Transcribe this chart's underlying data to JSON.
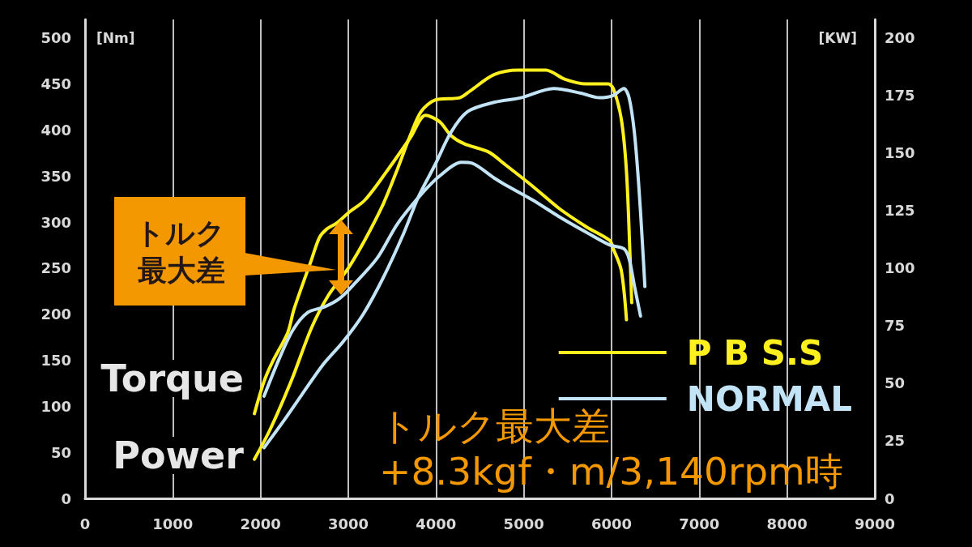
{
  "chart_data": {
    "type": "line",
    "ylabel": "[Nm]",
    "y2label": "[KW]",
    "annotations": [
      "Torque",
      "Power",
      "トルク最大差",
      "トルク最大差\n+8.3kgf・m/3,140rpm時"
    ],
    "series": [
      {
        "name": "P B S.S",
        "color": "#fff01e",
        "x": [
          1930,
          2040,
          2140,
          2310,
          2380,
          2580,
          2670,
          2750,
          2870,
          3000,
          3190,
          3430,
          3710,
          3880,
          4040,
          4170,
          4320,
          4600,
          4780,
          5100,
          5400,
          5710,
          5980,
          6020,
          6110,
          6170
        ],
        "values": [
          92,
          127,
          149,
          180,
          205,
          259,
          283,
          292,
          299,
          310,
          324,
          354,
          392,
          416,
          409,
          394,
          385,
          376,
          363,
          339,
          315,
          295,
          280,
          271,
          248,
          194
        ]
      },
      {
        "color": "#fff01e",
        "axis": "y2",
        "x": [
          1930,
          2110,
          2350,
          2580,
          2770,
          3000,
          3200,
          3400,
          3560,
          3710,
          3830,
          3990,
          4270,
          4390,
          4660,
          4940,
          5250,
          5470,
          5710,
          5960,
          6020,
          6110,
          6170,
          6210,
          6230
        ],
        "values": [
          17,
          30,
          51,
          74,
          88,
          100,
          113,
          128,
          143,
          158,
          168,
          173,
          174,
          177,
          184,
          186,
          186,
          182,
          180,
          180,
          178,
          165,
          142,
          106,
          85
        ]
      },
      {
        "name": "NORMAL",
        "color": "#c2e4f6",
        "x": [
          2040,
          2210,
          2370,
          2540,
          2730,
          2900,
          3070,
          3330,
          3560,
          3830,
          4040,
          4290,
          4410,
          4660,
          4780,
          5100,
          5400,
          5710,
          5980,
          6140,
          6200,
          6260,
          6330
        ],
        "values": [
          111,
          151,
          183,
          202,
          208,
          217,
          233,
          261,
          298,
          330,
          350,
          365,
          364,
          348,
          341,
          324,
          306,
          289,
          275,
          271,
          260,
          231,
          198
        ]
      },
      {
        "color": "#c2e4f6",
        "axis": "y2",
        "x": [
          2040,
          2270,
          2470,
          2710,
          2940,
          3170,
          3400,
          3630,
          3800,
          3990,
          4170,
          4360,
          4660,
          4970,
          5340,
          5650,
          5860,
          6020,
          6140,
          6200,
          6260,
          6310,
          6350,
          6380
        ],
        "values": [
          22,
          34,
          45,
          58,
          68,
          80,
          96,
          115,
          131,
          145,
          159,
          168,
          172,
          174,
          178,
          176,
          174,
          175,
          178,
          174,
          159,
          136,
          112,
          92
        ]
      }
    ],
    "xlim": [
      0,
      9000
    ],
    "xticks": [
      0,
      1000,
      2000,
      3000,
      4000,
      5000,
      6000,
      7000,
      8000,
      9000
    ],
    "ylim": [
      0,
      520
    ],
    "yticks": [
      0,
      50,
      100,
      150,
      200,
      250,
      300,
      350,
      400,
      450,
      500
    ],
    "y2lim": [
      0,
      208
    ],
    "y2ticks": [
      0,
      25,
      50,
      75,
      100,
      125,
      150,
      175,
      200
    ],
    "grid": "x",
    "legend": "right"
  }
}
